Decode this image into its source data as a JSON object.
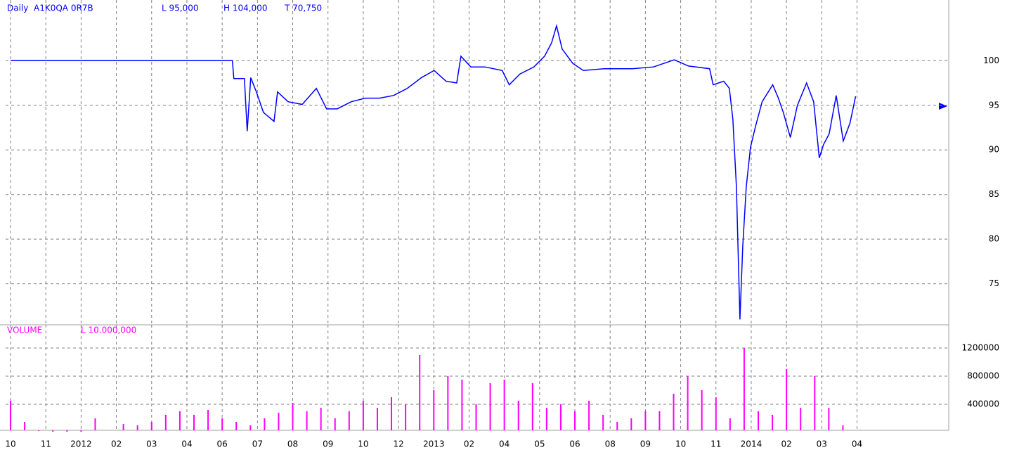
{
  "chart_data": [
    {
      "type": "line",
      "header": [
        "Daily",
        "A1K0QA 0R7B",
        "L 95,000",
        "H 104,000",
        "T 70,750"
      ],
      "color": "#0000ff",
      "x": [
        0,
        6.29,
        6.33,
        6.63,
        6.71,
        6.81,
        6.97,
        7.17,
        7.47,
        7.57,
        7.87,
        8.27,
        8.67,
        8.96,
        9.26,
        9.66,
        10.06,
        10.46,
        10.86,
        11.25,
        11.65,
        12.01,
        12.35,
        12.65,
        12.77,
        13.05,
        13.45,
        13.94,
        14.14,
        14.44,
        14.84,
        15.14,
        15.34,
        15.48,
        15.64,
        15.94,
        16.24,
        16.83,
        17.63,
        18.23,
        18.82,
        19.22,
        19.82,
        19.92,
        20.22,
        20.38,
        20.48,
        20.58,
        20.68,
        20.76,
        20.86,
        20.98,
        21.12,
        21.31,
        21.61,
        21.77,
        21.91,
        22.11,
        22.31,
        22.57,
        22.77,
        22.93,
        23.05,
        23.21,
        23.41,
        23.61,
        23.8,
        23.96
      ],
      "values": [
        100,
        100,
        98,
        98,
        92.1,
        98.1,
        96.5,
        94.2,
        93.2,
        96.5,
        95.4,
        95.1,
        96.9,
        94.6,
        94.6,
        95.4,
        95.8,
        95.8,
        96.1,
        96.9,
        98.1,
        98.9,
        97.7,
        97.5,
        100.5,
        99.3,
        99.3,
        98.9,
        97.3,
        98.5,
        99.3,
        100.5,
        102.0,
        103.9,
        101.3,
        99.7,
        98.9,
        99.1,
        99.1,
        99.3,
        100.1,
        99.4,
        99.1,
        97.3,
        97.7,
        96.9,
        93.4,
        85.9,
        71.0,
        79.2,
        85.9,
        90.3,
        92.6,
        95.4,
        97.3,
        95.8,
        94.2,
        91.4,
        95.0,
        97.5,
        95.4,
        89.1,
        90.6,
        91.8,
        96.1,
        91.0,
        93.0,
        96.0
      ],
      "xlim": [
        -0.14,
        26.6
      ],
      "xticks": [
        {
          "value": 0,
          "label": "10"
        },
        {
          "value": 1,
          "label": "11"
        },
        {
          "value": 2,
          "label": "2012"
        },
        {
          "value": 3,
          "label": "02"
        },
        {
          "value": 4,
          "label": "03"
        },
        {
          "value": 5,
          "label": "04"
        },
        {
          "value": 6,
          "label": "06"
        },
        {
          "value": 7,
          "label": "07"
        },
        {
          "value": 8,
          "label": "08"
        },
        {
          "value": 9,
          "label": "09"
        },
        {
          "value": 10,
          "label": "10"
        },
        {
          "value": 11,
          "label": "12"
        },
        {
          "value": 12,
          "label": "2013"
        },
        {
          "value": 13,
          "label": "02"
        },
        {
          "value": 14,
          "label": "04"
        },
        {
          "value": 15,
          "label": "05"
        },
        {
          "value": 16,
          "label": "06"
        },
        {
          "value": 17,
          "label": "08"
        },
        {
          "value": 18,
          "label": "09"
        },
        {
          "value": 19,
          "label": "10"
        },
        {
          "value": 20,
          "label": "11"
        },
        {
          "value": 21,
          "label": "2014"
        },
        {
          "value": 22,
          "label": "02"
        },
        {
          "value": 23,
          "label": "03"
        },
        {
          "value": 24,
          "label": "04"
        }
      ],
      "ylim": [
        70.4,
        106.8
      ],
      "yticks": [
        100,
        95,
        90,
        85,
        80,
        75
      ],
      "grid": true
    },
    {
      "type": "bar",
      "header": [
        "VOLUME",
        "L 10.000,000"
      ],
      "color": "#ff00ff",
      "x": [
        0,
        0.4,
        0.8,
        1.2,
        1.6,
        2.0,
        2.4,
        2.8,
        3.2,
        3.6,
        4.0,
        4.4,
        4.8,
        5.2,
        5.6,
        6.0,
        6.4,
        6.8,
        7.2,
        7.6,
        8.0,
        8.4,
        8.8,
        9.2,
        9.6,
        10.0,
        10.4,
        10.8,
        11.2,
        11.6,
        12.0,
        12.4,
        12.8,
        13.2,
        13.6,
        14.0,
        14.4,
        14.8,
        15.2,
        15.6,
        16.0,
        16.4,
        16.8,
        17.2,
        17.6,
        18.0,
        18.4,
        18.8,
        19.2,
        19.6,
        20.0,
        20.4,
        20.8,
        21.2,
        21.6,
        22.0,
        22.4,
        22.8,
        23.2,
        23.6,
        24.0
      ],
      "values": [
        450000,
        150000,
        20000,
        10000,
        10000,
        10000,
        200000,
        30000,
        120000,
        100000,
        150000,
        250000,
        300000,
        250000,
        320000,
        200000,
        150000,
        100000,
        200000,
        280000,
        420000,
        300000,
        350000,
        200000,
        300000,
        450000,
        350000,
        500000,
        400000,
        1100000,
        600000,
        800000,
        750000,
        400000,
        700000,
        750000,
        450000,
        700000,
        350000,
        400000,
        300000,
        450000,
        250000,
        150000,
        200000,
        300000,
        300000,
        550000,
        800000,
        600000,
        500000,
        200000,
        1200000,
        300000,
        250000,
        900000,
        350000,
        800000,
        350000,
        100000,
        30000
      ],
      "ylim": [
        30000,
        1530000
      ],
      "yticks": [
        1200000,
        800000,
        400000
      ],
      "grid": true
    }
  ]
}
